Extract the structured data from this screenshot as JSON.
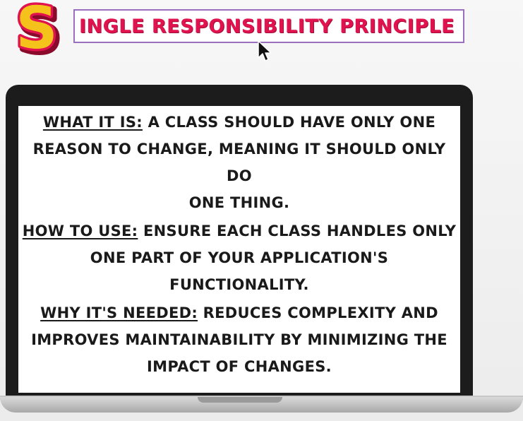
{
  "logo": {
    "letter": "S",
    "fill_color": "#f5c21b",
    "outline_color": "#e0134f"
  },
  "title": {
    "text": "INGLE RESPONSIBILITY PRINCIPLE",
    "color": "#e0134f",
    "border_color": "#9b6fc0"
  },
  "sections": [
    {
      "label": "WHAT IT IS:",
      "line1_rest": " A CLASS SHOULD HAVE ONLY ONE",
      "line2": "REASON TO CHANGE, MEANING IT SHOULD ONLY DO",
      "line3": "ONE THING."
    },
    {
      "label": "HOW TO USE:",
      "line1_rest": " ENSURE EACH CLASS HANDLES ONLY",
      "line2": "ONE PART OF YOUR APPLICATION'S FUNCTIONALITY."
    },
    {
      "label": "WHY IT'S NEEDED:",
      "line1_rest": " REDUCES COMPLEXITY AND",
      "line2": "IMPROVES MAINTAINABILITY BY MINIMIZING THE",
      "line3": "IMPACT OF CHANGES."
    }
  ]
}
